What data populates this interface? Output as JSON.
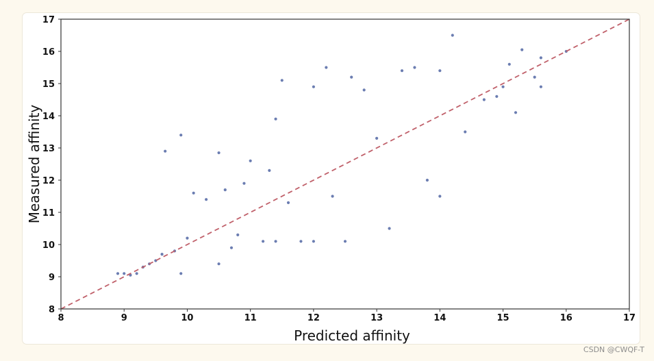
{
  "chart_data": {
    "type": "scatter",
    "title": "",
    "xlabel": "Predicted affinity",
    "ylabel": "Measured affinity",
    "xlim": [
      8,
      17
    ],
    "ylim": [
      8,
      17
    ],
    "x_ticks": [
      "8",
      "9",
      "10",
      "11",
      "12",
      "13",
      "14",
      "15",
      "16",
      "17"
    ],
    "y_ticks": [
      "8",
      "9",
      "10",
      "11",
      "12",
      "13",
      "14",
      "15",
      "16",
      "17"
    ],
    "grid": false,
    "point_color": "#5b6fa8",
    "reference_line": {
      "from": [
        8,
        8
      ],
      "to": [
        17,
        17
      ],
      "style": "dashed",
      "color": "#c0606a"
    },
    "series": [
      {
        "name": "",
        "points": [
          [
            8.9,
            9.1
          ],
          [
            9.0,
            9.1
          ],
          [
            9.1,
            9.05
          ],
          [
            9.2,
            9.1
          ],
          [
            9.3,
            9.3
          ],
          [
            9.4,
            9.4
          ],
          [
            9.5,
            9.5
          ],
          [
            9.6,
            9.7
          ],
          [
            9.65,
            12.9
          ],
          [
            9.8,
            9.8
          ],
          [
            9.9,
            13.4
          ],
          [
            9.9,
            9.1
          ],
          [
            10.0,
            10.2
          ],
          [
            10.1,
            11.6
          ],
          [
            10.3,
            11.4
          ],
          [
            10.5,
            12.85
          ],
          [
            10.6,
            11.7
          ],
          [
            10.5,
            9.4
          ],
          [
            10.7,
            9.9
          ],
          [
            10.8,
            10.3
          ],
          [
            10.9,
            11.9
          ],
          [
            11.0,
            12.6
          ],
          [
            11.2,
            10.1
          ],
          [
            11.3,
            12.3
          ],
          [
            11.4,
            13.9
          ],
          [
            11.4,
            10.1
          ],
          [
            11.5,
            15.1
          ],
          [
            11.6,
            11.3
          ],
          [
            11.8,
            10.1
          ],
          [
            12.0,
            14.9
          ],
          [
            12.0,
            10.1
          ],
          [
            12.2,
            15.5
          ],
          [
            12.3,
            11.5
          ],
          [
            12.5,
            10.1
          ],
          [
            12.6,
            15.2
          ],
          [
            12.8,
            14.8
          ],
          [
            13.0,
            13.3
          ],
          [
            13.2,
            10.5
          ],
          [
            13.4,
            15.4
          ],
          [
            13.6,
            15.5
          ],
          [
            13.8,
            12.0
          ],
          [
            14.0,
            11.5
          ],
          [
            14.0,
            15.4
          ],
          [
            14.2,
            16.5
          ],
          [
            14.4,
            13.5
          ],
          [
            14.7,
            14.5
          ],
          [
            14.9,
            14.6
          ],
          [
            15.0,
            14.9
          ],
          [
            15.1,
            15.6
          ],
          [
            15.2,
            14.1
          ],
          [
            15.3,
            16.05
          ],
          [
            15.5,
            15.2
          ],
          [
            15.6,
            15.8
          ],
          [
            15.6,
            14.9
          ],
          [
            16.0,
            16.0
          ]
        ]
      }
    ]
  },
  "watermark": "CSDN @CWQF-T"
}
